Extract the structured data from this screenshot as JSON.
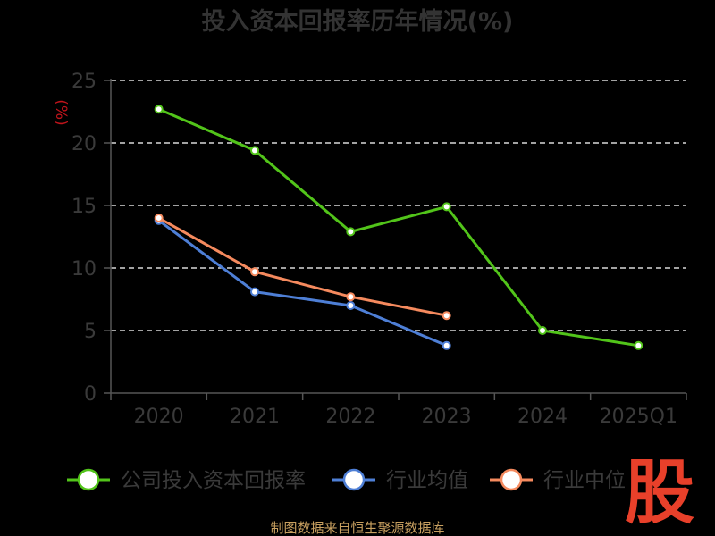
{
  "chart_data": {
    "type": "line",
    "title": "投入资本回报率历年情况(%)",
    "ylabel": "(%)",
    "xlabel": "",
    "categories": [
      "2020",
      "2021",
      "2022",
      "2023",
      "2024",
      "2025Q1"
    ],
    "ylim": [
      0,
      25
    ],
    "yticks": [
      0,
      5,
      10,
      15,
      20,
      25
    ],
    "grid": true,
    "legend_position": "bottom",
    "series": [
      {
        "name": "公司投入资本回报率",
        "color": "#52c41a",
        "values": [
          22.7,
          19.4,
          12.9,
          14.9,
          5.0,
          3.8
        ]
      },
      {
        "name": "行业均值",
        "color": "#4e7fd6",
        "values": [
          13.8,
          8.1,
          7.0,
          3.8,
          null,
          null
        ]
      },
      {
        "name": "行业中位数",
        "color": "#f58a5e",
        "values": [
          14.0,
          9.7,
          7.7,
          6.2,
          null,
          null
        ]
      }
    ]
  },
  "legend_visible": [
    "公司投入资本回报率",
    "行业均值",
    "行业中位"
  ],
  "source": "制图数据来自恒生聚源数据库",
  "logo_text": "股"
}
